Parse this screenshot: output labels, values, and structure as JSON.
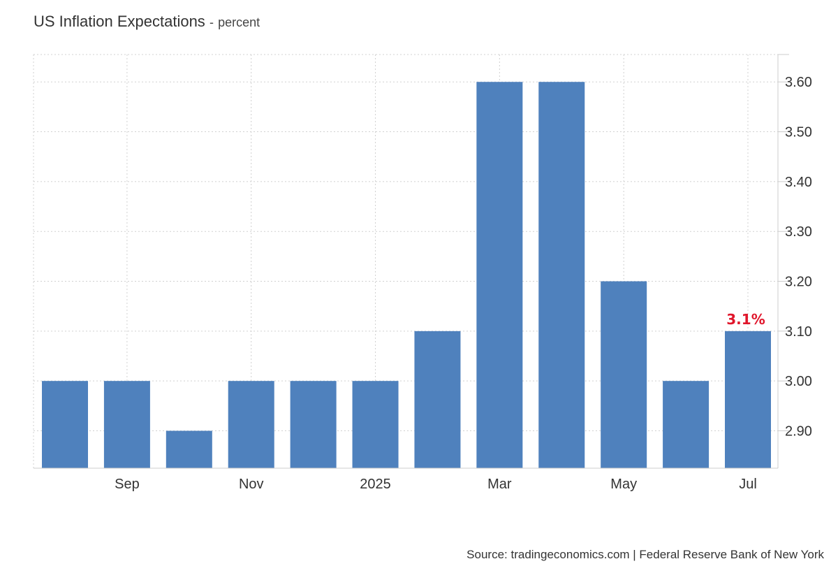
{
  "chart_data": {
    "type": "bar",
    "title": "US Inflation Expectations",
    "units": "percent",
    "categories": [
      "2024-08",
      "2024-09",
      "2024-10",
      "2024-11",
      "2024-12",
      "2025-01",
      "2025-02",
      "2025-03",
      "2025-04",
      "2025-05",
      "2025-06",
      "2025-07"
    ],
    "values": [
      3.0,
      3.0,
      2.9,
      3.0,
      3.0,
      3.0,
      3.1,
      3.6,
      3.6,
      3.2,
      3.0,
      3.1
    ],
    "x_tick_labels": [
      "Sep",
      "Nov",
      "2025",
      "Mar",
      "May",
      "Jul"
    ],
    "y_ticks": [
      2.9,
      3.0,
      3.1,
      3.2,
      3.3,
      3.4,
      3.5,
      3.6
    ],
    "y_tick_labels": [
      "2.90",
      "3.00",
      "3.10",
      "3.20",
      "3.30",
      "3.40",
      "3.50",
      "3.60"
    ],
    "ylim": [
      2.825,
      3.655
    ],
    "y_axis_side": "right",
    "grid": true,
    "last_value_label": "3.1%",
    "colors": {
      "bar": "#4f81bd",
      "last_label": "#e0162b",
      "grid": "#d0d0d0",
      "axis": "#cccccc",
      "text": "#333333"
    }
  },
  "source": "Source: tradingeconomics.com | Federal Reserve Bank of New York"
}
